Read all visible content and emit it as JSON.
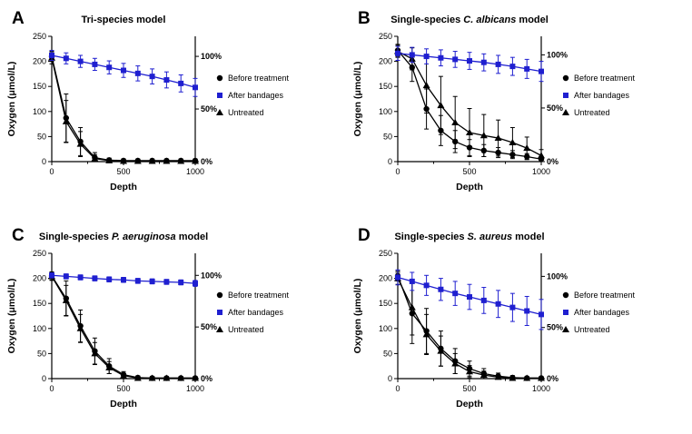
{
  "figure": {
    "background": "#ffffff",
    "accent_blue": "#1f1fd0",
    "series_black": "#000000"
  },
  "chart_data": [
    {
      "type": "line",
      "panel_label": "A",
      "title": "Tri-species model",
      "title_parts": [
        {
          "text": "Tri-species model",
          "italic": false
        }
      ],
      "xlabel": "Depth",
      "ylabel": "Oxygen (μmol/L)",
      "xlim": [
        0,
        1000
      ],
      "ylim": [
        0,
        250
      ],
      "x_ticks": [
        0,
        500,
        1000
      ],
      "x_minor_ticks": [
        250,
        750
      ],
      "y_ticks": [
        0,
        50,
        100,
        150,
        200,
        250
      ],
      "right_axis_ticks": [
        {
          "label": "0%",
          "value": 0
        },
        {
          "label": "50%",
          "value": 105
        },
        {
          "label": "100%",
          "value": 210
        }
      ],
      "x": [
        0,
        100,
        200,
        300,
        400,
        500,
        600,
        700,
        800,
        900,
        1000
      ],
      "series": [
        {
          "name": "Before treatment",
          "marker": "circle",
          "color": "#000000",
          "values": [
            210,
            87,
            40,
            8,
            3,
            2,
            2,
            2,
            2,
            2,
            2
          ],
          "errors": [
            10,
            48,
            28,
            10,
            4,
            3,
            2,
            2,
            2,
            2,
            2
          ]
        },
        {
          "name": "After bandages",
          "marker": "square",
          "color": "#1f1fd0",
          "values": [
            212,
            206,
            200,
            194,
            188,
            182,
            176,
            170,
            163,
            156,
            148
          ],
          "errors": [
            10,
            11,
            12,
            12,
            13,
            14,
            15,
            15,
            16,
            17,
            18
          ]
        },
        {
          "name": "Untreated",
          "marker": "triangle",
          "color": "#000000",
          "values": [
            207,
            80,
            35,
            6,
            2,
            1,
            1,
            1,
            1,
            1,
            1
          ],
          "errors": [
            12,
            42,
            25,
            8,
            3,
            2,
            2,
            2,
            2,
            2,
            2
          ]
        }
      ],
      "legend": [
        "Before treatment",
        "After bandages",
        "Untreated"
      ],
      "legend_position": "right"
    },
    {
      "type": "line",
      "panel_label": "B",
      "title": "Single-species C. albicans model",
      "title_parts": [
        {
          "text": "Single-species ",
          "italic": false
        },
        {
          "text": "C. albicans",
          "italic": true
        },
        {
          "text": " model",
          "italic": false
        }
      ],
      "xlabel": "Depth",
      "ylabel": "Oxygen (μmol/L)",
      "xlim": [
        0,
        1000
      ],
      "ylim": [
        0,
        250
      ],
      "x_ticks": [
        0,
        500,
        1000
      ],
      "x_minor_ticks": [
        250,
        750
      ],
      "y_ticks": [
        0,
        50,
        100,
        150,
        200,
        250
      ],
      "right_axis_ticks": [
        {
          "label": "0%",
          "value": 0
        },
        {
          "label": "50%",
          "value": 107
        },
        {
          "label": "100%",
          "value": 213
        }
      ],
      "x": [
        0,
        100,
        200,
        300,
        400,
        500,
        600,
        700,
        800,
        900,
        1000
      ],
      "series": [
        {
          "name": "Before treatment",
          "marker": "circle",
          "color": "#000000",
          "values": [
            222,
            188,
            105,
            62,
            40,
            28,
            22,
            18,
            14,
            10,
            5
          ],
          "errors": [
            12,
            28,
            40,
            30,
            22,
            16,
            12,
            10,
            8,
            6,
            5
          ]
        },
        {
          "name": "After bandages",
          "marker": "square",
          "color": "#1f1fd0",
          "values": [
            216,
            213,
            210,
            207,
            204,
            201,
            198,
            194,
            190,
            185,
            180
          ],
          "errors": [
            14,
            15,
            15,
            16,
            16,
            17,
            17,
            18,
            18,
            19,
            20
          ]
        },
        {
          "name": "Untreated",
          "marker": "triangle",
          "color": "#000000",
          "values": [
            220,
            205,
            152,
            112,
            78,
            58,
            52,
            47,
            38,
            27,
            12
          ],
          "errors": [
            12,
            22,
            55,
            58,
            52,
            48,
            42,
            36,
            30,
            22,
            12
          ]
        }
      ],
      "legend": [
        "Before treatment",
        "After bandages",
        "Untreated"
      ],
      "legend_position": "right"
    },
    {
      "type": "line",
      "panel_label": "C",
      "title": "Single-species P. aeruginosa model",
      "title_parts": [
        {
          "text": "Single-species ",
          "italic": false
        },
        {
          "text": "P. aeruginosa",
          "italic": true
        },
        {
          "text": " model",
          "italic": false
        }
      ],
      "xlabel": "Depth",
      "ylabel": "Oxygen (μmol/L)",
      "xlim": [
        0,
        1000
      ],
      "ylim": [
        0,
        250
      ],
      "x_ticks": [
        0,
        500,
        1000
      ],
      "x_minor_ticks": [
        250,
        750
      ],
      "y_ticks": [
        0,
        50,
        100,
        150,
        200,
        250
      ],
      "right_axis_ticks": [
        {
          "label": "0%",
          "value": 0
        },
        {
          "label": "50%",
          "value": 103
        },
        {
          "label": "100%",
          "value": 206
        }
      ],
      "x": [
        0,
        100,
        200,
        300,
        400,
        500,
        600,
        700,
        800,
        900,
        1000
      ],
      "series": [
        {
          "name": "Before treatment",
          "marker": "circle",
          "color": "#000000",
          "values": [
            205,
            160,
            105,
            55,
            25,
            8,
            2,
            1,
            1,
            1,
            1
          ],
          "errors": [
            8,
            35,
            32,
            26,
            15,
            6,
            3,
            2,
            2,
            2,
            2
          ]
        },
        {
          "name": "After bandages",
          "marker": "square",
          "color": "#1f1fd0",
          "values": [
            206,
            204,
            202,
            200,
            198,
            197,
            195,
            194,
            193,
            192,
            190
          ],
          "errors": [
            5,
            5,
            5,
            5,
            5,
            5,
            5,
            5,
            5,
            5,
            6
          ]
        },
        {
          "name": "Untreated",
          "marker": "triangle",
          "color": "#000000",
          "values": [
            204,
            156,
            100,
            50,
            22,
            6,
            1,
            1,
            1,
            1,
            1
          ],
          "errors": [
            8,
            30,
            28,
            22,
            12,
            5,
            2,
            2,
            2,
            2,
            2
          ]
        }
      ],
      "legend": [
        "Before treatment",
        "After bandages",
        "Untreated"
      ],
      "legend_position": "right"
    },
    {
      "type": "line",
      "panel_label": "D",
      "title": "Single-species S. aureus model",
      "title_parts": [
        {
          "text": "Single-species ",
          "italic": false
        },
        {
          "text": "S. aureus",
          "italic": true
        },
        {
          "text": " model",
          "italic": false
        }
      ],
      "xlabel": "Depth",
      "ylabel": "Oxygen (μmol/L)",
      "xlim": [
        0,
        1000
      ],
      "ylim": [
        0,
        250
      ],
      "x_ticks": [
        0,
        500,
        1000
      ],
      "x_minor_ticks": [
        250,
        750
      ],
      "y_ticks": [
        0,
        50,
        100,
        150,
        200,
        250
      ],
      "right_axis_ticks": [
        {
          "label": "0%",
          "value": 0
        },
        {
          "label": "50%",
          "value": 102
        },
        {
          "label": "100%",
          "value": 204
        }
      ],
      "x": [
        0,
        100,
        200,
        300,
        400,
        500,
        600,
        700,
        800,
        900,
        1000
      ],
      "series": [
        {
          "name": "Before treatment",
          "marker": "circle",
          "color": "#000000",
          "values": [
            205,
            130,
            95,
            60,
            35,
            20,
            10,
            5,
            2,
            1,
            1
          ],
          "errors": [
            10,
            60,
            45,
            35,
            25,
            15,
            10,
            6,
            4,
            2,
            2
          ]
        },
        {
          "name": "After bandages",
          "marker": "square",
          "color": "#1f1fd0",
          "values": [
            202,
            194,
            186,
            178,
            170,
            163,
            156,
            149,
            142,
            135,
            128
          ],
          "errors": [
            15,
            18,
            20,
            22,
            24,
            25,
            26,
            27,
            28,
            29,
            30
          ]
        },
        {
          "name": "Untreated",
          "marker": "triangle",
          "color": "#000000",
          "values": [
            200,
            142,
            88,
            55,
            30,
            14,
            7,
            3,
            1,
            1,
            1
          ],
          "errors": [
            12,
            55,
            40,
            30,
            20,
            12,
            8,
            4,
            2,
            2,
            2
          ]
        }
      ],
      "legend": [
        "Before treatment",
        "After bandages",
        "Untreated"
      ],
      "legend_position": "right"
    }
  ]
}
